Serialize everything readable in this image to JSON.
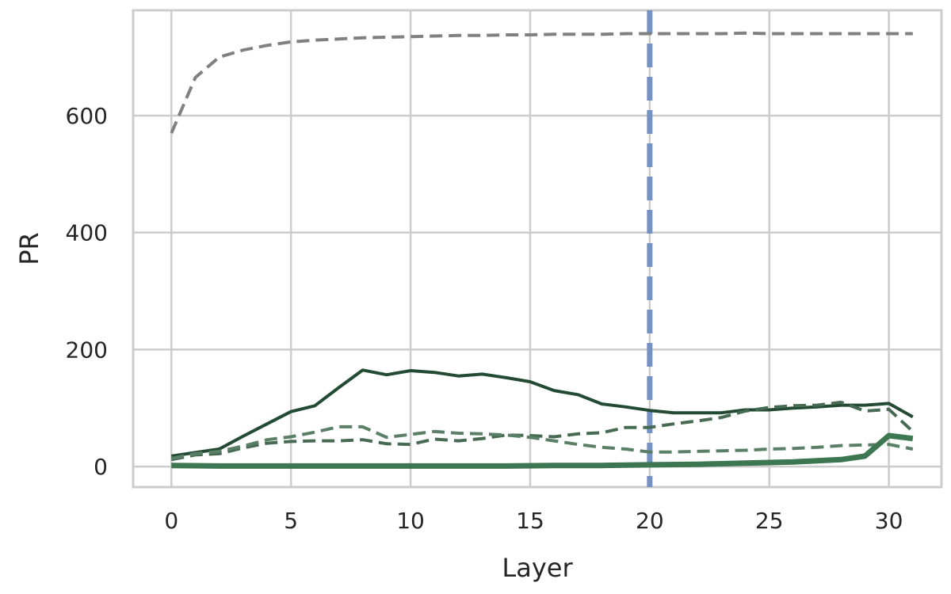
{
  "chart_data": {
    "type": "line",
    "title": "",
    "xlabel": "Layer",
    "ylabel": "PR",
    "xlim": [
      -1.6,
      32.2
    ],
    "ylim": [
      -35,
      780
    ],
    "x_ticks": [
      0,
      5,
      10,
      15,
      20,
      25,
      30
    ],
    "y_ticks": [
      0,
      200,
      400,
      600
    ],
    "grid": true,
    "legend": "none",
    "vline": {
      "x": 20,
      "color": "#7592c3",
      "style": "dashed"
    },
    "series": [
      {
        "color": "#808080",
        "style": "dashed",
        "width": "thin",
        "x": [
          0,
          1,
          2,
          3,
          4,
          5,
          6,
          7,
          8,
          9,
          10,
          11,
          12,
          13,
          14,
          15,
          16,
          17,
          18,
          19,
          20,
          21,
          22,
          23,
          24,
          25,
          26,
          27,
          28,
          29,
          30,
          31
        ],
        "y": [
          570,
          665,
          700,
          712,
          720,
          726,
          729,
          731,
          733,
          734,
          735,
          736,
          737,
          737,
          738,
          738,
          739,
          739,
          739,
          740,
          740,
          740,
          740,
          740,
          741,
          740,
          740,
          740,
          740,
          740,
          740,
          740
        ]
      },
      {
        "color": "#234a33",
        "style": "solid",
        "width": "normal",
        "x": [
          0,
          1,
          2,
          3,
          4,
          5,
          6,
          7,
          8,
          9,
          10,
          11,
          12,
          13,
          14,
          15,
          16,
          17,
          18,
          19,
          20,
          21,
          22,
          23,
          24,
          25,
          26,
          27,
          28,
          29,
          30,
          31
        ],
        "y": [
          18,
          24,
          30,
          52,
          73,
          94,
          104,
          135,
          165,
          157,
          164,
          161,
          155,
          158,
          152,
          145,
          130,
          123,
          107,
          102,
          96,
          92,
          92,
          92,
          97,
          97,
          100,
          102,
          105,
          105,
          108,
          85
        ]
      },
      {
        "color": "#476a52",
        "style": "dashed",
        "width": "normal",
        "x": [
          0,
          1,
          2,
          3,
          4,
          5,
          6,
          7,
          8,
          9,
          10,
          11,
          12,
          13,
          14,
          15,
          16,
          17,
          18,
          19,
          20,
          21,
          22,
          23,
          24,
          25,
          26,
          27,
          28,
          29,
          30,
          31
        ],
        "y": [
          12,
          20,
          22,
          32,
          40,
          43,
          44,
          44,
          46,
          39,
          38,
          47,
          44,
          48,
          54,
          53,
          51,
          56,
          58,
          67,
          67,
          73,
          78,
          84,
          95,
          101,
          104,
          105,
          110,
          95,
          98,
          60
        ]
      },
      {
        "color": "#5a7f67",
        "style": "dashed",
        "width": "normal",
        "x": [
          0,
          1,
          2,
          3,
          4,
          5,
          6,
          7,
          8,
          9,
          10,
          11,
          12,
          13,
          14,
          15,
          16,
          17,
          18,
          19,
          20,
          21,
          22,
          23,
          24,
          25,
          26,
          27,
          28,
          29,
          30,
          31
        ],
        "y": [
          14,
          22,
          26,
          35,
          46,
          51,
          59,
          68,
          68,
          50,
          55,
          60,
          57,
          56,
          54,
          50,
          44,
          38,
          33,
          30,
          25,
          25,
          26,
          27,
          28,
          30,
          31,
          33,
          36,
          37,
          38,
          30
        ]
      },
      {
        "color": "#3d7751",
        "style": "solid",
        "width": "thick",
        "x": [
          0,
          2,
          4,
          6,
          8,
          10,
          12,
          14,
          16,
          18,
          20,
          22,
          24,
          26,
          28,
          29,
          30,
          31
        ],
        "y": [
          2,
          1,
          1,
          1,
          1,
          1,
          1,
          1,
          2,
          2,
          3,
          4,
          6,
          8,
          12,
          18,
          53,
          48
        ]
      }
    ]
  }
}
